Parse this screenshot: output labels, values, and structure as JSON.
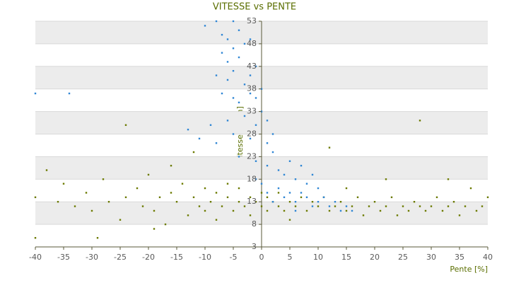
{
  "chart_data": {
    "type": "scatter",
    "title": "VITESSE vs PENTE",
    "x_label": "Pente [%]",
    "y_label": "Vitesse [km/h]",
    "xlim": [
      -40,
      40
    ],
    "xticks": [
      -40,
      -35,
      -30,
      -25,
      -20,
      -15,
      -10,
      -5,
      0,
      5,
      10,
      15,
      20,
      25,
      30,
      35,
      40
    ],
    "ylim": [
      3,
      53
    ],
    "yticks": [
      3,
      8,
      13,
      18,
      23,
      28,
      33,
      38,
      43,
      48,
      53
    ],
    "grid": true,
    "series": [
      {
        "color": "#6b7a00",
        "x": [
          -40,
          -40,
          -38,
          -36,
          -35,
          -33,
          -31,
          -30,
          -28,
          -27,
          -25,
          -24,
          -22,
          -21,
          -20,
          -19,
          -18,
          -17,
          -16,
          -15,
          -14,
          -13,
          -12,
          -11,
          -10,
          -10,
          -9,
          -8,
          -8,
          -7,
          -6,
          -6,
          -5,
          -4,
          -4,
          -3,
          -2,
          -2,
          -1,
          0,
          0,
          1,
          1,
          2,
          3,
          3,
          4,
          5,
          6,
          7,
          8,
          9,
          10,
          11,
          12,
          13,
          14,
          15,
          16,
          17,
          18,
          19,
          20,
          21,
          22,
          23,
          24,
          25,
          26,
          27,
          28,
          29,
          30,
          31,
          32,
          33,
          34,
          35,
          36,
          37,
          38,
          39,
          40,
          -24,
          28,
          -16,
          -12,
          5,
          -29,
          -19,
          15,
          22,
          12,
          33
        ],
        "values": [
          14,
          5,
          20,
          13,
          17,
          12,
          15,
          11,
          18,
          13,
          9,
          14,
          16,
          12,
          19,
          11,
          14,
          8,
          15,
          13,
          17,
          10,
          14,
          12,
          16,
          11,
          13,
          15,
          9,
          12,
          14,
          17,
          11,
          13,
          16,
          12,
          14,
          10,
          13,
          15,
          12,
          11,
          14,
          13,
          12,
          15,
          11,
          13,
          12,
          14,
          11,
          13,
          12,
          14,
          11,
          12,
          13,
          11,
          12,
          14,
          10,
          12,
          13,
          11,
          12,
          14,
          10,
          12,
          11,
          13,
          12,
          11,
          12,
          14,
          11,
          12,
          13,
          10,
          12,
          16,
          11,
          12,
          14,
          30,
          31,
          21,
          24,
          9,
          5,
          7,
          16,
          18,
          25,
          18
        ]
      },
      {
        "color": "#2f86d4",
        "x": [
          -10,
          -8,
          -7,
          -6,
          -5,
          -4,
          -7,
          -6,
          -5,
          -4,
          -3,
          -2,
          -8,
          -6,
          -5,
          -3,
          -2,
          -1,
          -7,
          -5,
          -4,
          -2,
          -1,
          0,
          -9,
          -6,
          -3,
          -1,
          0,
          1,
          -13,
          -11,
          -8,
          -5,
          -2,
          1,
          2,
          -40,
          -34,
          -4,
          -1,
          1,
          2,
          3,
          4,
          5,
          6,
          7,
          8,
          9,
          10,
          3,
          4,
          5,
          6,
          7,
          8,
          9,
          10,
          11,
          12,
          13,
          14,
          15,
          16,
          2,
          1,
          -1,
          0,
          6
        ],
        "values": [
          52,
          53,
          50,
          49,
          53,
          51,
          46,
          44,
          47,
          45,
          48,
          49,
          41,
          40,
          42,
          39,
          41,
          43,
          37,
          36,
          35,
          37,
          36,
          38,
          30,
          31,
          32,
          30,
          33,
          31,
          29,
          27,
          26,
          28,
          27,
          26,
          28,
          37,
          37,
          23,
          22,
          21,
          24,
          20,
          19,
          22,
          18,
          21,
          17,
          19,
          16,
          16,
          14,
          15,
          13,
          15,
          14,
          12,
          13,
          14,
          12,
          13,
          11,
          12,
          11,
          13,
          15,
          18,
          17,
          11
        ]
      }
    ]
  }
}
